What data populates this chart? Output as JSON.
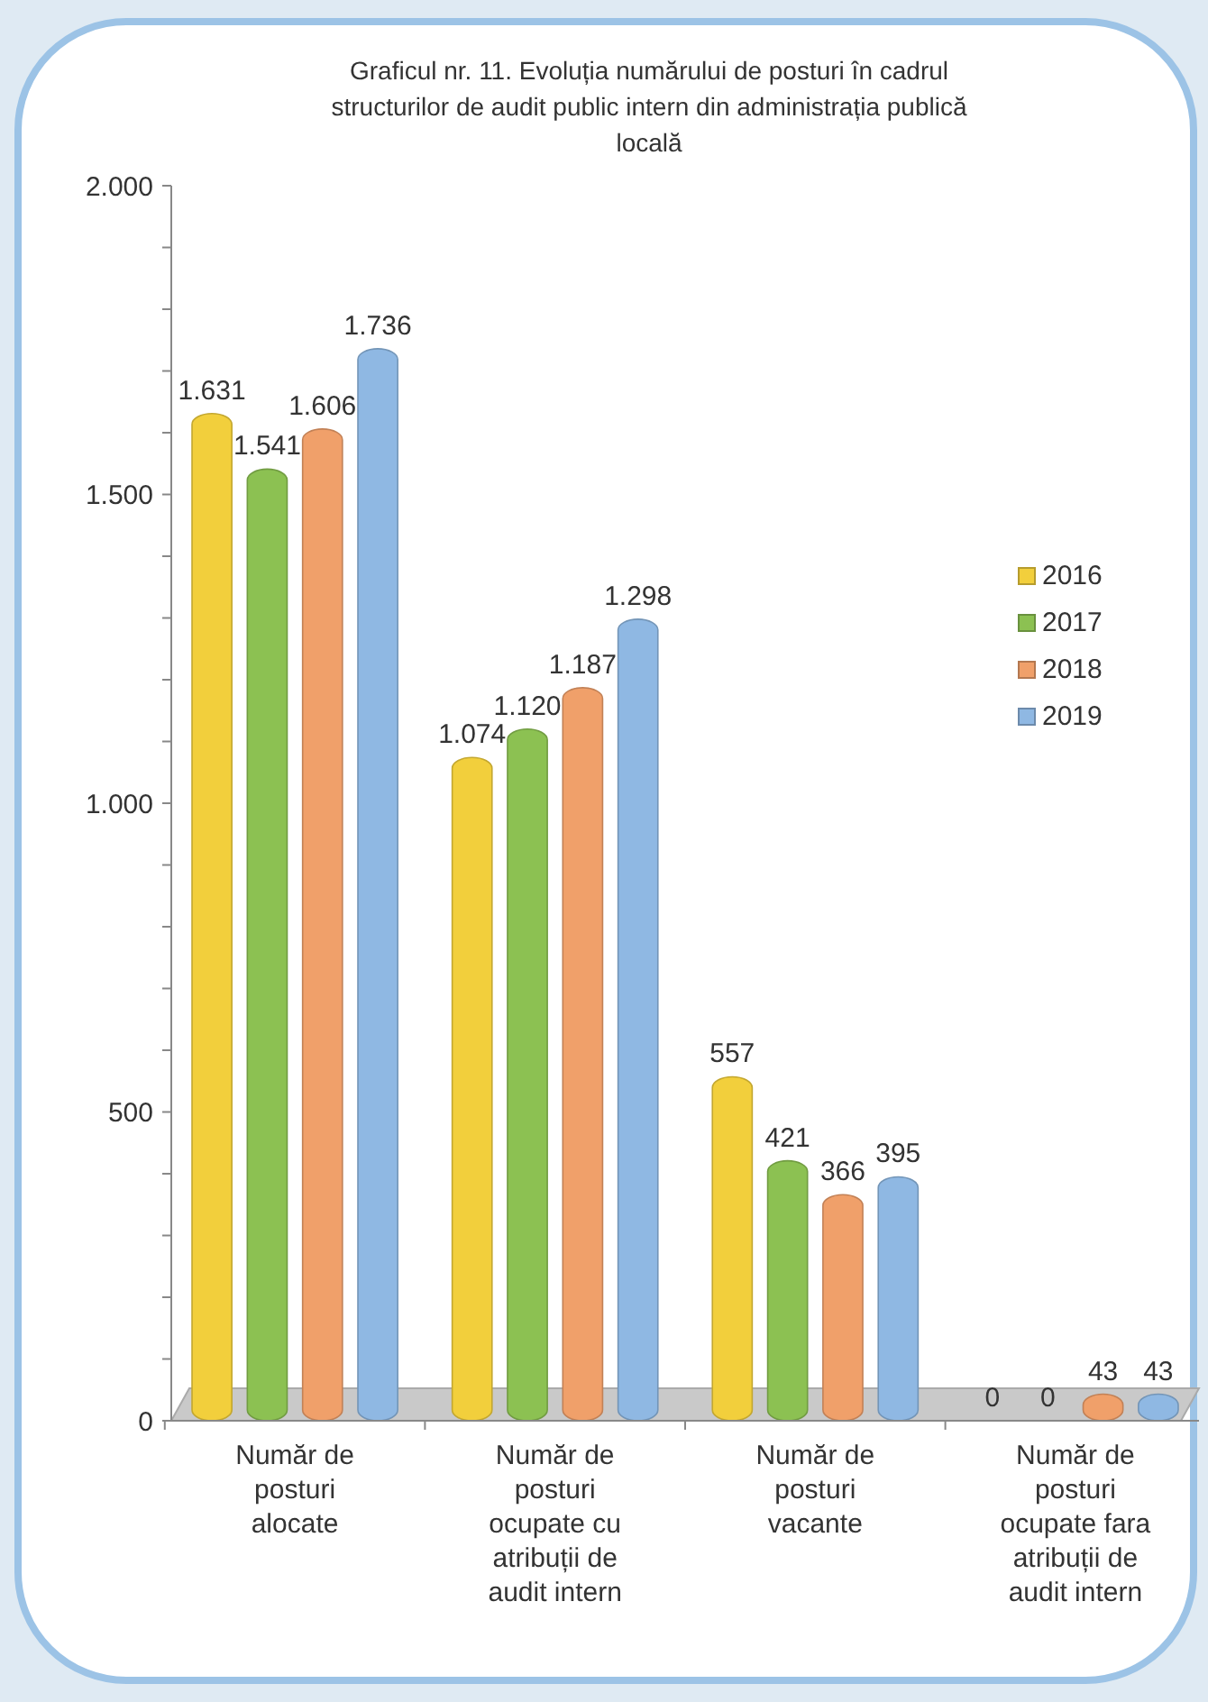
{
  "chart_data": {
    "type": "bar",
    "title": "Graficul nr. 11. Evoluția numărului de posturi în cadrul structurilor de audit public intern din administrația publică locală",
    "categories": [
      "Număr de posturi alocate",
      "Număr de posturi ocupate cu atribuții de audit intern",
      "Număr de posturi vacante",
      "Număr de posturi ocupate fara atribuții de audit intern"
    ],
    "series": [
      {
        "name": "2016",
        "color": "#f2cf3c",
        "values": [
          1631,
          1074,
          557,
          0
        ],
        "value_labels": [
          "1.631",
          "1.074",
          "557",
          "0"
        ]
      },
      {
        "name": "2017",
        "color": "#8cc152",
        "values": [
          1541,
          1120,
          421,
          0
        ],
        "value_labels": [
          "1.541",
          "1.120",
          "421",
          "0"
        ]
      },
      {
        "name": "2018",
        "color": "#f0a06a",
        "values": [
          1606,
          1187,
          366,
          43
        ],
        "value_labels": [
          "1.606",
          "1.187",
          "366",
          "43"
        ]
      },
      {
        "name": "2019",
        "color": "#8fb8e3",
        "values": [
          1736,
          1298,
          395,
          43
        ],
        "value_labels": [
          "1.736",
          "1.298",
          "395",
          "43"
        ]
      }
    ],
    "ylim": [
      0,
      2000
    ],
    "yticks": [
      {
        "value": 0,
        "label": "0"
      },
      {
        "value": 100,
        "label": null
      },
      {
        "value": 200,
        "label": null
      },
      {
        "value": 300,
        "label": null
      },
      {
        "value": 400,
        "label": null
      },
      {
        "value": 500,
        "label": "500"
      },
      {
        "value": 600,
        "label": null
      },
      {
        "value": 700,
        "label": null
      },
      {
        "value": 800,
        "label": null
      },
      {
        "value": 900,
        "label": null
      },
      {
        "value": 1000,
        "label": "1.000"
      },
      {
        "value": 1100,
        "label": null
      },
      {
        "value": 1200,
        "label": null
      },
      {
        "value": 1300,
        "label": null
      },
      {
        "value": 1400,
        "label": null
      },
      {
        "value": 1500,
        "label": "1.500"
      },
      {
        "value": 1600,
        "label": null
      },
      {
        "value": 1700,
        "label": null
      },
      {
        "value": 1800,
        "label": null
      },
      {
        "value": 1900,
        "label": null
      },
      {
        "value": 2000,
        "label": "2.000"
      }
    ],
    "grid": false,
    "legend": "right"
  }
}
